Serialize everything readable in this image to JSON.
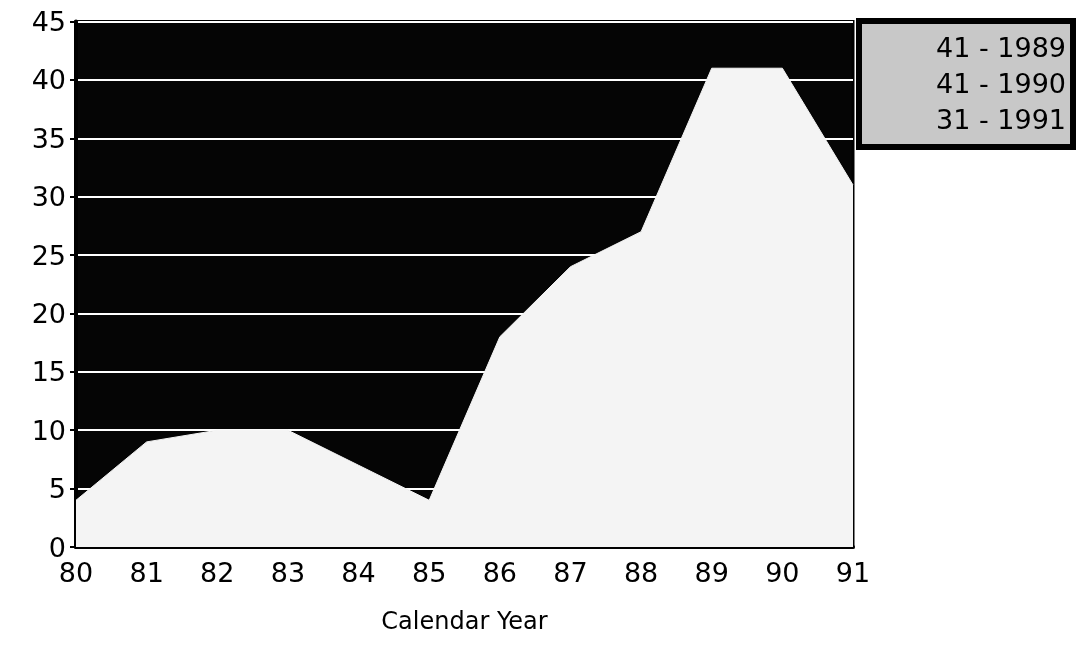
{
  "chart_data": {
    "type": "area",
    "xlabel": "Calendar Year",
    "categories": [
      "80",
      "81",
      "82",
      "83",
      "84",
      "85",
      "86",
      "87",
      "88",
      "89",
      "90",
      "91"
    ],
    "series": [
      {
        "color": "#f4f4f4",
        "values": [
          4,
          9,
          10,
          10,
          7,
          4,
          18,
          24,
          27,
          41,
          41,
          31
        ]
      }
    ],
    "ylim": [
      0,
      45
    ],
    "yticks": [
      0,
      5,
      10,
      15,
      20,
      25,
      30,
      35,
      40,
      45
    ],
    "grid": "y",
    "annotations": [
      "41 - 1989",
      "41 - 1990",
      "31 - 1991"
    ]
  }
}
